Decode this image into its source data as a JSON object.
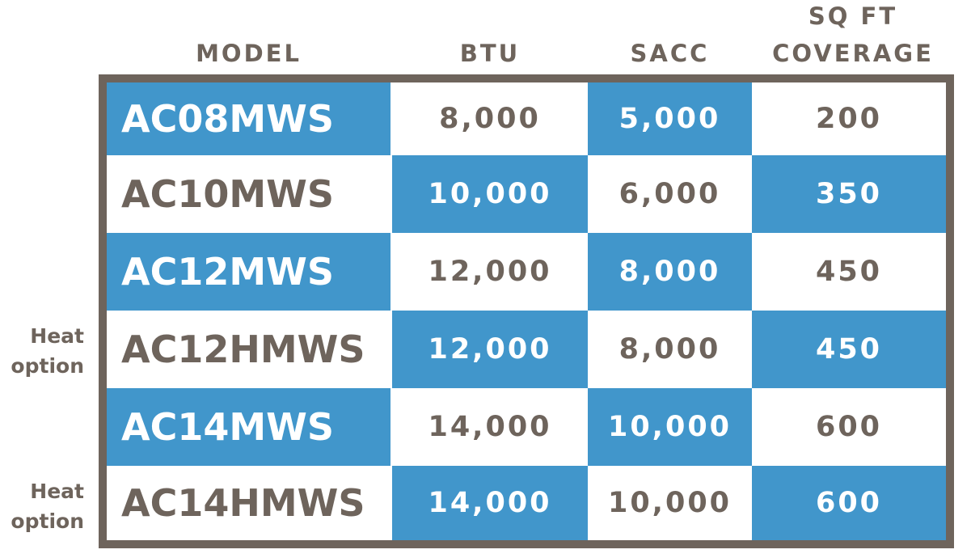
{
  "headers": {
    "model": "MODEL",
    "btu": "BTU",
    "sacc": "SACC",
    "sqft_line1": "SQ FT",
    "sqft_line2": "COVERAGE"
  },
  "colors": {
    "accent_blue": "#4196cb",
    "text_gray": "#6e645c",
    "border": "#6e645c"
  },
  "rows": [
    {
      "model": "AC08MWS",
      "btu": "8,000",
      "sacc": "5,000",
      "sqft": "200",
      "note": ""
    },
    {
      "model": "AC10MWS",
      "btu": "10,000",
      "sacc": "6,000",
      "sqft": "350",
      "note": ""
    },
    {
      "model": "AC12MWS",
      "btu": "12,000",
      "sacc": "8,000",
      "sqft": "450",
      "note": ""
    },
    {
      "model": "AC12HMWS",
      "btu": "12,000",
      "sacc": "8,000",
      "sqft": "450",
      "note": "Heat option"
    },
    {
      "model": "AC14MWS",
      "btu": "14,000",
      "sacc": "10,000",
      "sqft": "600",
      "note": ""
    },
    {
      "model": "AC14HMWS",
      "btu": "14,000",
      "sacc": "10,000",
      "sqft": "600",
      "note": "Heat option"
    }
  ],
  "notes": {
    "heat_line1": "Heat",
    "heat_line2": "option"
  }
}
